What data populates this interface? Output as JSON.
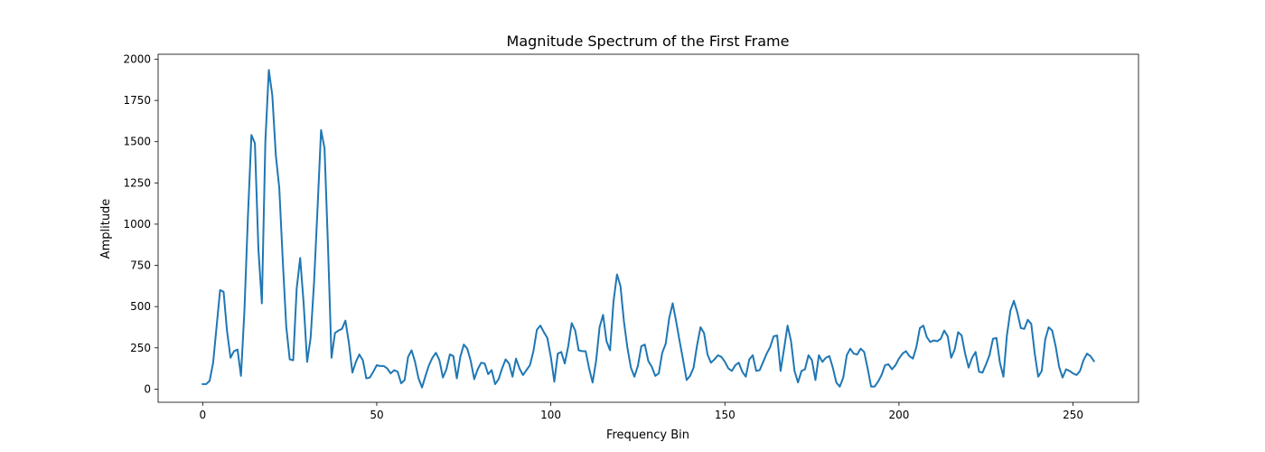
{
  "chart_data": {
    "type": "line",
    "title": "Magnitude Spectrum of the First Frame",
    "xlabel": "Frequency Bin",
    "ylabel": "Amplitude",
    "xlim": [
      -12.8,
      268.8
    ],
    "ylim": [
      -80,
      2030
    ],
    "x_ticks": [
      0,
      50,
      100,
      150,
      200,
      250
    ],
    "y_ticks": [
      0,
      250,
      500,
      750,
      1000,
      1250,
      1500,
      1750,
      2000
    ],
    "grid": false,
    "series": [
      {
        "color": "#1f77b4",
        "x_start": 0,
        "x_step": 1,
        "values": [
          30,
          30,
          50,
          160,
          380,
          600,
          590,
          350,
          190,
          230,
          240,
          80,
          480,
          1050,
          1540,
          1490,
          850,
          520,
          1500,
          1935,
          1780,
          1420,
          1220,
          780,
          380,
          180,
          175,
          610,
          795,
          520,
          165,
          310,
          650,
          1100,
          1570,
          1460,
          860,
          190,
          340,
          355,
          365,
          415,
          280,
          100,
          165,
          210,
          175,
          65,
          70,
          105,
          145,
          140,
          140,
          125,
          95,
          115,
          105,
          35,
          55,
          195,
          235,
          165,
          65,
          10,
          80,
          145,
          190,
          220,
          175,
          70,
          120,
          210,
          200,
          65,
          195,
          270,
          245,
          170,
          60,
          120,
          160,
          155,
          90,
          115,
          30,
          60,
          125,
          180,
          155,
          75,
          185,
          125,
          85,
          115,
          145,
          230,
          360,
          385,
          345,
          310,
          195,
          45,
          215,
          225,
          155,
          260,
          400,
          355,
          235,
          230,
          230,
          125,
          40,
          170,
          375,
          450,
          290,
          235,
          530,
          695,
          625,
          410,
          250,
          130,
          75,
          140,
          260,
          270,
          170,
          135,
          80,
          95,
          220,
          275,
          430,
          520,
          410,
          290,
          175,
          55,
          80,
          130,
          265,
          375,
          340,
          210,
          160,
          180,
          205,
          195,
          165,
          125,
          110,
          145,
          160,
          105,
          75,
          180,
          205,
          110,
          115,
          165,
          215,
          255,
          320,
          325,
          110,
          245,
          385,
          290,
          110,
          40,
          110,
          120,
          205,
          175,
          55,
          205,
          165,
          190,
          200,
          130,
          40,
          15,
          70,
          205,
          245,
          215,
          210,
          245,
          225,
          125,
          15,
          15,
          45,
          85,
          145,
          150,
          120,
          145,
          185,
          215,
          230,
          200,
          185,
          255,
          370,
          385,
          315,
          285,
          295,
          290,
          305,
          355,
          320,
          190,
          240,
          345,
          325,
          215,
          130,
          190,
          225,
          105,
          100,
          150,
          205,
          305,
          310,
          160,
          75,
          325,
          475,
          535,
          465,
          370,
          365,
          420,
          395,
          215,
          75,
          110,
          300,
          375,
          355,
          260,
          135,
          70,
          120,
          110,
          95,
          85,
          110,
          175,
          215,
          200,
          170
        ]
      }
    ]
  }
}
